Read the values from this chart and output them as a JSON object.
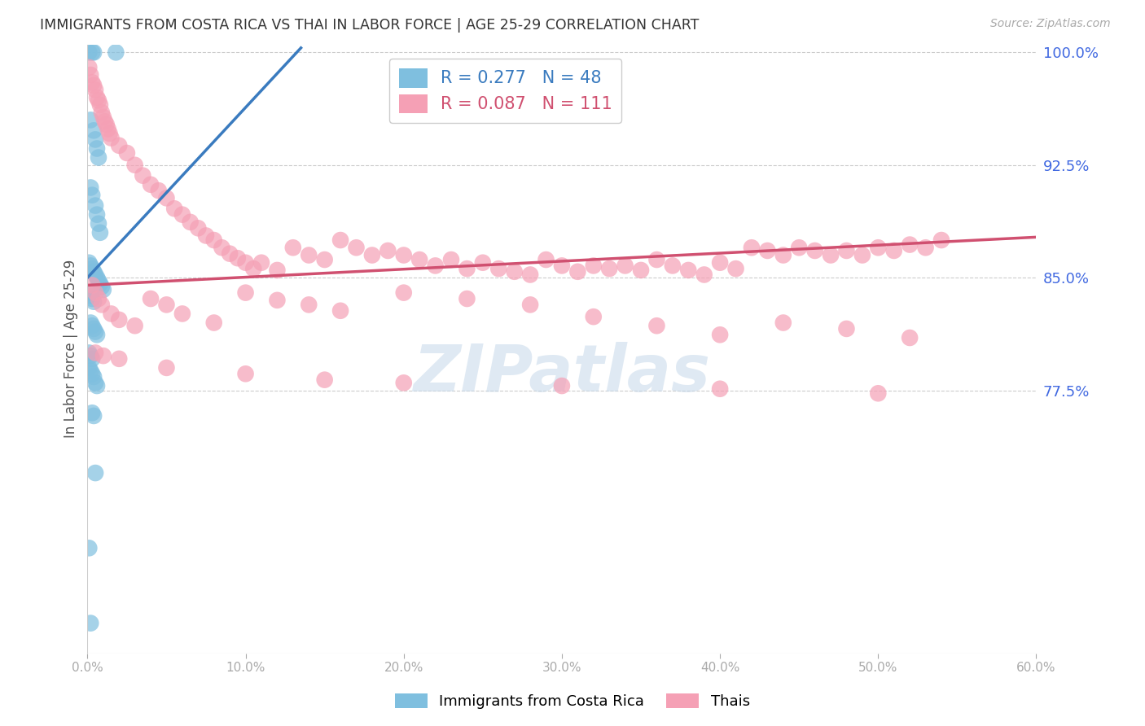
{
  "title": "IMMIGRANTS FROM COSTA RICA VS THAI IN LABOR FORCE | AGE 25-29 CORRELATION CHART",
  "source": "Source: ZipAtlas.com",
  "ylabel": "In Labor Force | Age 25-29",
  "xlim": [
    0.0,
    0.6
  ],
  "ylim": [
    0.6,
    1.005
  ],
  "yticks": [
    0.775,
    0.85,
    0.925,
    1.0
  ],
  "xticks": [
    0.0,
    0.1,
    0.2,
    0.3,
    0.4,
    0.5,
    0.6
  ],
  "costa_rica_R": 0.277,
  "costa_rica_N": 48,
  "thai_R": 0.087,
  "thai_N": 111,
  "blue_color": "#7fbfdf",
  "blue_line_color": "#3a7bbf",
  "pink_color": "#f5a0b5",
  "pink_line_color": "#d05070",
  "legend_label_costa": "Immigrants from Costa Rica",
  "legend_label_thai": "Thais",
  "background_color": "#ffffff",
  "grid_color": "#cccccc",
  "title_color": "#333333",
  "axis_tick_color": "#4169e1",
  "watermark": "ZIPatlas",
  "cr_x": [
    0.001,
    0.003,
    0.004,
    0.018,
    0.002,
    0.004,
    0.005,
    0.006,
    0.007,
    0.002,
    0.003,
    0.005,
    0.006,
    0.007,
    0.008,
    0.001,
    0.002,
    0.003,
    0.004,
    0.005,
    0.006,
    0.007,
    0.008,
    0.009,
    0.01,
    0.001,
    0.002,
    0.003,
    0.004,
    0.002,
    0.003,
    0.004,
    0.005,
    0.006,
    0.001,
    0.002,
    0.003,
    0.001,
    0.002,
    0.003,
    0.004,
    0.005,
    0.006,
    0.003,
    0.004,
    0.005,
    0.001,
    0.002
  ],
  "cr_y": [
    1.0,
    1.0,
    1.0,
    1.0,
    0.955,
    0.948,
    0.942,
    0.936,
    0.93,
    0.91,
    0.905,
    0.898,
    0.892,
    0.886,
    0.88,
    0.86,
    0.858,
    0.856,
    0.854,
    0.852,
    0.85,
    0.848,
    0.846,
    0.844,
    0.842,
    0.84,
    0.838,
    0.836,
    0.834,
    0.82,
    0.818,
    0.816,
    0.814,
    0.812,
    0.8,
    0.798,
    0.796,
    0.79,
    0.788,
    0.786,
    0.784,
    0.78,
    0.778,
    0.76,
    0.758,
    0.72,
    0.67,
    0.62
  ],
  "th_x": [
    0.001,
    0.002,
    0.003,
    0.004,
    0.005,
    0.006,
    0.007,
    0.008,
    0.009,
    0.01,
    0.011,
    0.012,
    0.013,
    0.014,
    0.015,
    0.02,
    0.025,
    0.03,
    0.035,
    0.04,
    0.045,
    0.05,
    0.055,
    0.06,
    0.065,
    0.07,
    0.075,
    0.08,
    0.085,
    0.09,
    0.095,
    0.1,
    0.105,
    0.11,
    0.12,
    0.13,
    0.14,
    0.15,
    0.16,
    0.17,
    0.18,
    0.19,
    0.2,
    0.21,
    0.22,
    0.23,
    0.24,
    0.25,
    0.26,
    0.27,
    0.28,
    0.29,
    0.3,
    0.31,
    0.32,
    0.33,
    0.34,
    0.35,
    0.36,
    0.37,
    0.38,
    0.39,
    0.4,
    0.41,
    0.42,
    0.43,
    0.44,
    0.45,
    0.46,
    0.47,
    0.48,
    0.49,
    0.5,
    0.51,
    0.52,
    0.53,
    0.54,
    0.003,
    0.005,
    0.007,
    0.009,
    0.015,
    0.02,
    0.03,
    0.04,
    0.05,
    0.06,
    0.08,
    0.1,
    0.12,
    0.14,
    0.16,
    0.2,
    0.24,
    0.28,
    0.32,
    0.36,
    0.4,
    0.44,
    0.48,
    0.52,
    0.005,
    0.01,
    0.02,
    0.05,
    0.1,
    0.15,
    0.2,
    0.3,
    0.4,
    0.5
  ],
  "th_y": [
    0.99,
    0.985,
    0.98,
    0.978,
    0.975,
    0.97,
    0.968,
    0.965,
    0.96,
    0.957,
    0.954,
    0.952,
    0.949,
    0.946,
    0.943,
    0.938,
    0.933,
    0.925,
    0.918,
    0.912,
    0.908,
    0.903,
    0.896,
    0.892,
    0.887,
    0.883,
    0.878,
    0.875,
    0.87,
    0.866,
    0.863,
    0.86,
    0.856,
    0.86,
    0.855,
    0.87,
    0.865,
    0.862,
    0.875,
    0.87,
    0.865,
    0.868,
    0.865,
    0.862,
    0.858,
    0.862,
    0.856,
    0.86,
    0.856,
    0.854,
    0.852,
    0.862,
    0.858,
    0.854,
    0.858,
    0.856,
    0.858,
    0.855,
    0.862,
    0.858,
    0.855,
    0.852,
    0.86,
    0.856,
    0.87,
    0.868,
    0.865,
    0.87,
    0.868,
    0.865,
    0.868,
    0.865,
    0.87,
    0.868,
    0.872,
    0.87,
    0.875,
    0.845,
    0.84,
    0.836,
    0.832,
    0.826,
    0.822,
    0.818,
    0.836,
    0.832,
    0.826,
    0.82,
    0.84,
    0.835,
    0.832,
    0.828,
    0.84,
    0.836,
    0.832,
    0.824,
    0.818,
    0.812,
    0.82,
    0.816,
    0.81,
    0.8,
    0.798,
    0.796,
    0.79,
    0.786,
    0.782,
    0.78,
    0.778,
    0.776,
    0.773
  ],
  "cr_line_x": [
    0.0,
    0.135
  ],
  "cr_line_y": [
    0.85,
    1.003
  ],
  "th_line_x": [
    0.0,
    0.6
  ],
  "th_line_y": [
    0.845,
    0.877
  ]
}
